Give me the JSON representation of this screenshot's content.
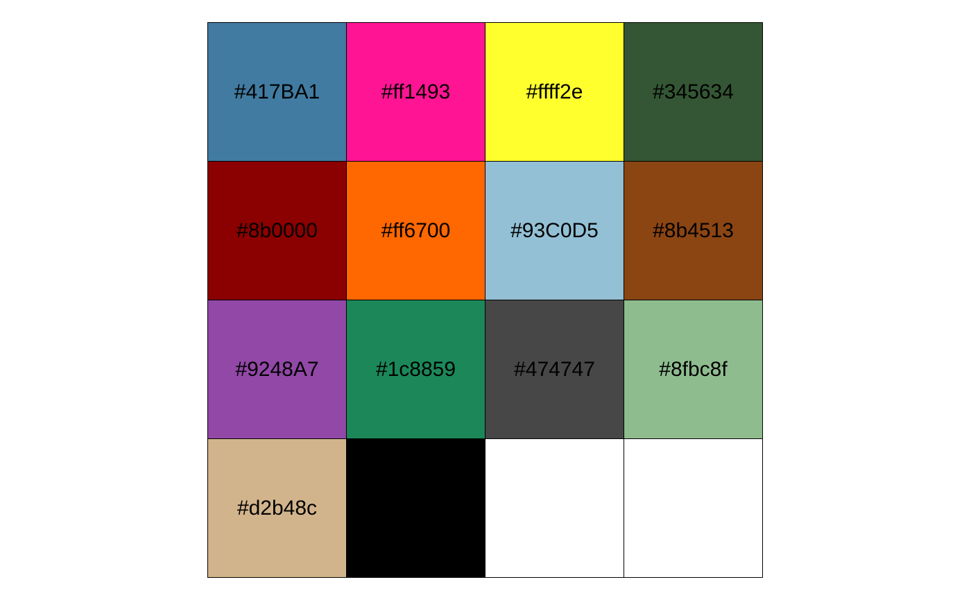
{
  "swatches": [
    {
      "label": "#417BA1",
      "color": "#417BA1"
    },
    {
      "label": "#ff1493",
      "color": "#ff1493"
    },
    {
      "label": "#ffff2e",
      "color": "#ffff2e"
    },
    {
      "label": "#345634",
      "color": "#345634"
    },
    {
      "label": "#8b0000",
      "color": "#8b0000"
    },
    {
      "label": "#ff6700",
      "color": "#ff6700"
    },
    {
      "label": "#93C0D5",
      "color": "#93C0D5"
    },
    {
      "label": "#8b4513",
      "color": "#8b4513"
    },
    {
      "label": "#9248A7",
      "color": "#9248A7"
    },
    {
      "label": "#1c8859",
      "color": "#1c8859"
    },
    {
      "label": "#474747",
      "color": "#474747"
    },
    {
      "label": "#8fbc8f",
      "color": "#8fbc8f"
    },
    {
      "label": "#d2b48c",
      "color": "#d2b48c"
    },
    {
      "label": "",
      "color": "#000000"
    },
    {
      "label": "",
      "color": "#ffffff"
    },
    {
      "label": "",
      "color": "#ffffff"
    }
  ]
}
